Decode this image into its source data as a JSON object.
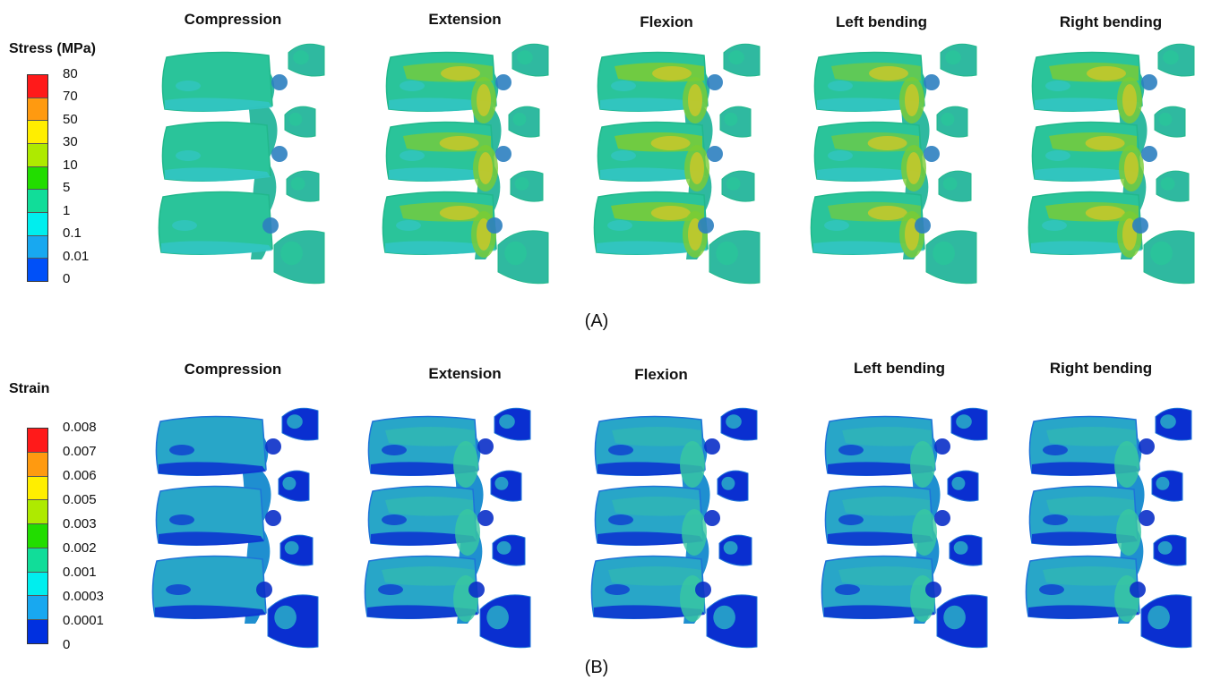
{
  "panels": [
    {
      "id": "A",
      "label": "(A)",
      "legend": {
        "title": "Stress (MPa)",
        "ticks": [
          "80",
          "70",
          "50",
          "30",
          "10",
          "5",
          "1",
          "0.1",
          "0.01",
          "0"
        ],
        "colors": [
          "#ff1a1a",
          "#ff9a10",
          "#ffee00",
          "#aeea00",
          "#22dd00",
          "#11dd99",
          "#00eeee",
          "#18a8f0",
          "#0050f8"
        ]
      },
      "columns": [
        "Compression",
        "Extension",
        "Flexion",
        "Left bending",
        "Right bending"
      ]
    },
    {
      "id": "B",
      "label": "(B)",
      "legend": {
        "title": "Strain",
        "ticks": [
          "0.008",
          "0.007",
          "0.006",
          "0.005",
          "0.003",
          "0.002",
          "0.001",
          "0.0003",
          "0.0001",
          "0"
        ],
        "colors": [
          "#ff1a1a",
          "#ff9a10",
          "#ffee00",
          "#aeea00",
          "#22dd00",
          "#11dd99",
          "#00eeee",
          "#18a8f0",
          "#0030e0"
        ]
      },
      "columns": [
        "Compression",
        "Extension",
        "Flexion",
        "Left bending",
        "Right bending"
      ]
    }
  ]
}
